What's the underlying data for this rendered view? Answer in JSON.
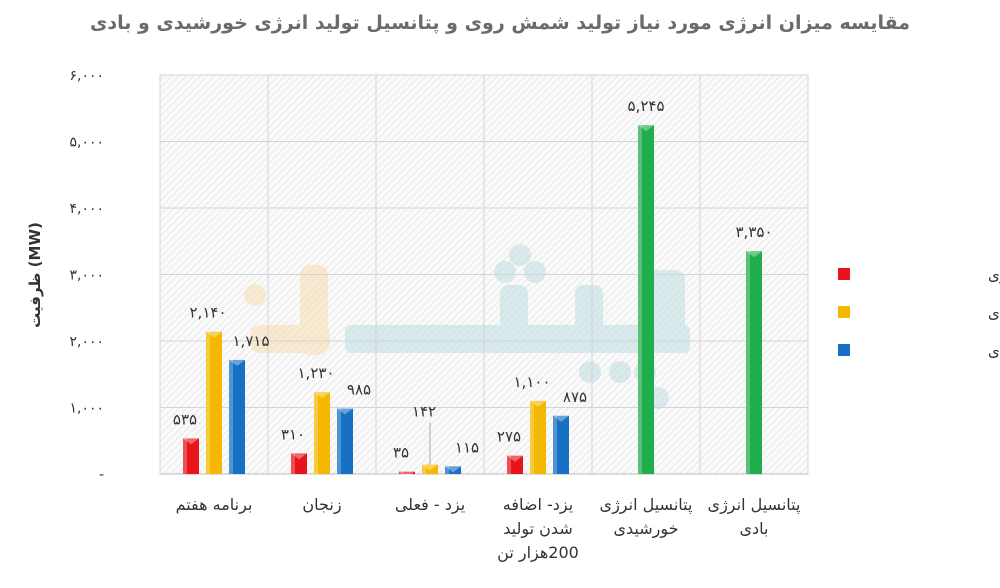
{
  "chart_data": {
    "type": "bar",
    "title": "مقایسه میزان انرژی مورد نیاز تولید شمش روی و پتانسیل تولید انرژی خورشیدی و بادی",
    "ylabel": "ظرفیت (MW)",
    "xlabel": "",
    "ylim": [
      0,
      6000
    ],
    "yticks": [
      "-",
      "۱,۰۰۰",
      "۲,۰۰۰",
      "۳,۰۰۰",
      "۴,۰۰۰",
      "۵,۰۰۰",
      "۶,۰۰۰"
    ],
    "grid": true,
    "legend_position": "right",
    "categories": [
      "برنامه هفتم",
      "زنجان",
      "یزد - فعلی",
      "یزد- اضافه شدن تولید 200هزار تن",
      "پتانسیل انرژی خورشیدی",
      "پتانسیل انرژی بادی"
    ],
    "series": [
      {
        "name": "نیروگاه گازی",
        "color": "#e8141b",
        "values": [
          535,
          310,
          35,
          275,
          null,
          null
        ],
        "labels": [
          "۵۳۵",
          "۳۱۰",
          "۳۵",
          "۲۷۵",
          "",
          ""
        ]
      },
      {
        "name": "نیروگاه خورشیدی",
        "color": "#f5b800",
        "values": [
          2140,
          1230,
          142,
          1100,
          null,
          null
        ],
        "labels": [
          "۲,۱۴۰",
          "۱,۲۳۰",
          "۱۴۲",
          "۱,۱۰۰",
          "",
          ""
        ]
      },
      {
        "name": "نیروگاه بادی",
        "color": "#1670c4",
        "values": [
          1715,
          985,
          115,
          875,
          null,
          null
        ],
        "labels": [
          "۱,۷۱۵",
          "۹۸۵",
          "۱۱۵",
          "۸۷۵",
          "",
          ""
        ]
      },
      {
        "color": "#1fae4b",
        "values": [
          null,
          null,
          null,
          null,
          5245,
          3350
        ],
        "labels": [
          "",
          "",
          "",
          "",
          "۵,۲۴۵",
          "۳,۳۵۰"
        ]
      }
    ]
  },
  "watermark": "پیشران"
}
